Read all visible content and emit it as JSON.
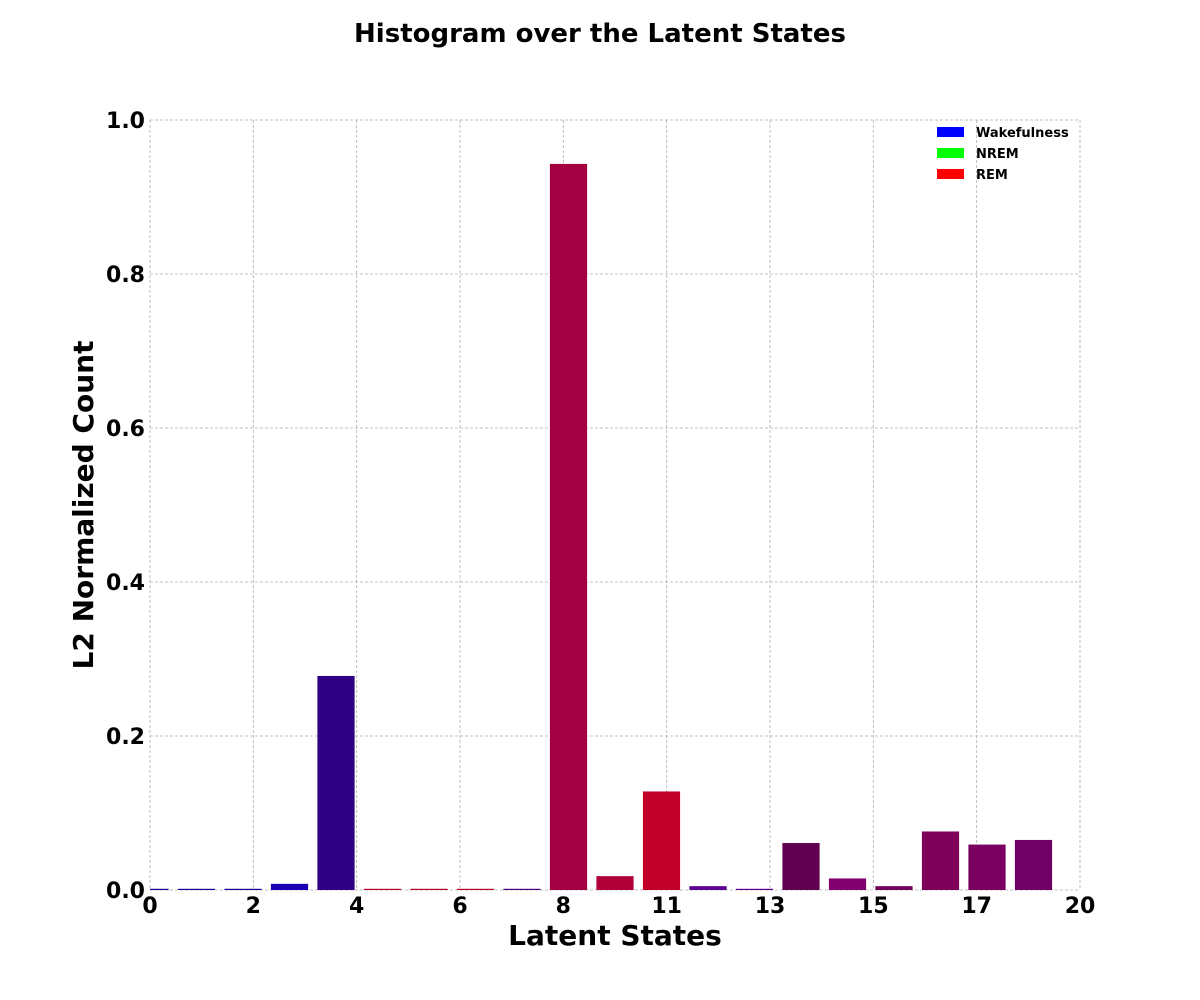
{
  "chart_data": {
    "type": "bar",
    "title": "Histogram over the Latent States",
    "xlabel": "Latent States",
    "ylabel": "L2 Normalized Count",
    "xlim": [
      0,
      20
    ],
    "ylim": [
      0,
      1.0
    ],
    "x_tick_labels": [
      "0",
      "2",
      "4",
      "6",
      "8",
      "11",
      "13",
      "15",
      "17",
      "20"
    ],
    "y_tick_labels": [
      "0.0",
      "0.2",
      "0.4",
      "0.6",
      "0.8",
      "1.0"
    ],
    "y_ticks": [
      0.0,
      0.2,
      0.4,
      0.6,
      0.8,
      1.0
    ],
    "grid": true,
    "legend_position": "top-right",
    "legend": [
      {
        "name": "Wakefulness",
        "color": "#0000ff"
      },
      {
        "name": "NREM",
        "color": "#00ff00"
      },
      {
        "name": "REM",
        "color": "#ff0000"
      }
    ],
    "bars": [
      {
        "x": 0,
        "value": 0.001,
        "color": "#1a0099"
      },
      {
        "x": 1,
        "value": 0.001,
        "color": "#1a0099"
      },
      {
        "x": 2,
        "value": 0.001,
        "color": "#1a0099"
      },
      {
        "x": 3,
        "value": 0.008,
        "color": "#1a00b5"
      },
      {
        "x": 4,
        "value": 0.278,
        "color": "#2e0084"
      },
      {
        "x": 5,
        "value": 0.001,
        "color": "#b5002a"
      },
      {
        "x": 6,
        "value": 0.001,
        "color": "#b5002a"
      },
      {
        "x": 7,
        "value": 0.001,
        "color": "#b5002a"
      },
      {
        "x": 8,
        "value": 0.001,
        "color": "#4a0080"
      },
      {
        "x": 9,
        "value": 0.943,
        "color": "#a30042"
      },
      {
        "x": 10,
        "value": 0.018,
        "color": "#b0003a"
      },
      {
        "x": 11,
        "value": 0.128,
        "color": "#c0002a"
      },
      {
        "x": 12,
        "value": 0.005,
        "color": "#5a0090"
      },
      {
        "x": 13,
        "value": 0.001,
        "color": "#5a0090"
      },
      {
        "x": 14,
        "value": 0.061,
        "color": "#620050"
      },
      {
        "x": 15,
        "value": 0.015,
        "color": "#82006e"
      },
      {
        "x": 16,
        "value": 0.005,
        "color": "#70005a"
      },
      {
        "x": 17,
        "value": 0.076,
        "color": "#7e0058"
      },
      {
        "x": 18,
        "value": 0.059,
        "color": "#7a0060"
      },
      {
        "x": 19,
        "value": 0.065,
        "color": "#700064"
      }
    ]
  }
}
